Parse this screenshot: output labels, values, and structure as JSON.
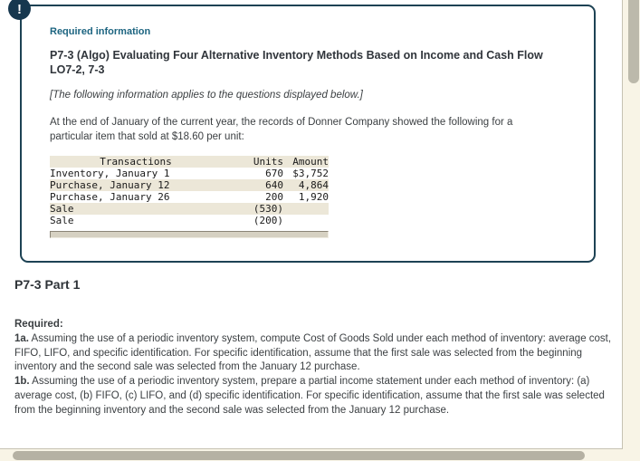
{
  "colors": {
    "box_border": "#1d4254",
    "required_label": "#1c6480",
    "table_stripe": "#ece7d8",
    "page_background": "#f8f4e6",
    "scroll_thumb": "#bcb9ab"
  },
  "alert_icon": {
    "glyph": "!"
  },
  "required_info": {
    "label": "Required information",
    "title": "P7-3 (Algo) Evaluating Four Alternative Inventory Methods Based on Income and Cash Flow LO7-2, 7-3",
    "note": "[The following information applies to the questions displayed below.]",
    "intro": "At the end of January of the current year, the records of Donner Company showed the following for a particular item that sold at $18.60 per unit:",
    "table": {
      "headers": {
        "transactions": "Transactions",
        "units": "Units",
        "amount": "Amount"
      },
      "rows": [
        {
          "transaction": "Inventory, January 1",
          "units": "670",
          "amount": "$3,752"
        },
        {
          "transaction": "Purchase, January 12",
          "units": "640",
          "amount": "4,864"
        },
        {
          "transaction": "Purchase, January 26",
          "units": "200",
          "amount": "1,920"
        },
        {
          "transaction": "Sale",
          "units": "(530)",
          "amount": ""
        },
        {
          "transaction": "Sale",
          "units": "(200)",
          "amount": ""
        }
      ]
    }
  },
  "part": {
    "heading": "P7-3 Part 1"
  },
  "requirements": {
    "label": "Required:",
    "item_1a_label": "1a.",
    "item_1a_text": " Assuming the use of a periodic inventory system, compute Cost of Goods Sold under each method of inventory: average cost, FIFO, LIFO, and specific identification. For specific identification, assume that the first sale was selected from the beginning inventory and the second sale was selected from the January 12 purchase.",
    "item_1b_label": "1b.",
    "item_1b_text": " Assuming the use of a periodic inventory system, prepare a partial income statement under each method of inventory: (a) average cost, (b) FIFO, (c) LIFO, and (d) specific identification. For specific identification, assume that the first sale was selected from the beginning inventory and the second sale was selected from the January 12 purchase."
  }
}
